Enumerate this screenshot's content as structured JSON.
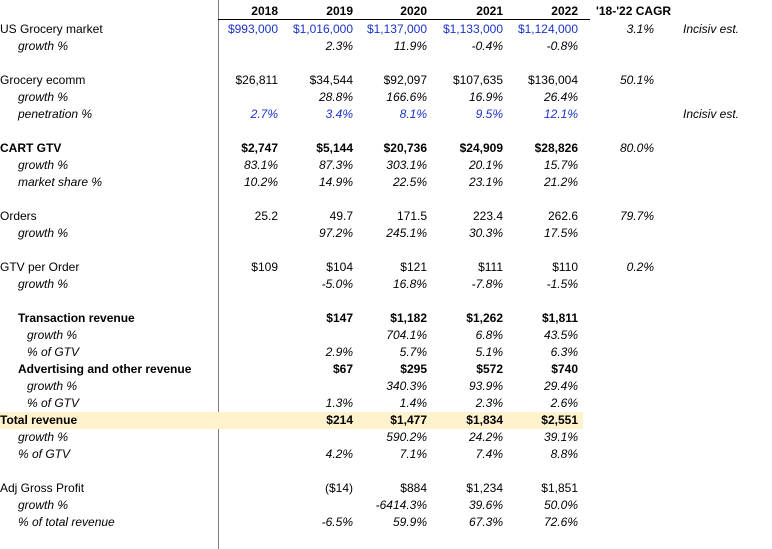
{
  "header": {
    "years": [
      "2018",
      "2019",
      "2020",
      "2021",
      "2022"
    ],
    "cagr": "'18-'22 CAGR"
  },
  "rows": {
    "us_grocery": {
      "label": "US Grocery market",
      "v": [
        "$993,000",
        "$1,016,000",
        "$1,137,000",
        "$1,133,000",
        "$1,124,000"
      ],
      "cagr": "3.1%",
      "note": "Incisiv est."
    },
    "us_growth": {
      "label": "growth %",
      "v": [
        "",
        "2.3%",
        "11.9%",
        "-0.4%",
        "-0.8%"
      ]
    },
    "ecomm": {
      "label": "Grocery ecomm",
      "v": [
        "$26,811",
        "$34,544",
        "$92,097",
        "$107,635",
        "$136,004"
      ],
      "cagr": "50.1%"
    },
    "ecomm_growth": {
      "label": "growth %",
      "v": [
        "",
        "28.8%",
        "166.6%",
        "16.9%",
        "26.4%"
      ]
    },
    "ecomm_pen": {
      "label": "penetration %",
      "v": [
        "2.7%",
        "3.4%",
        "8.1%",
        "9.5%",
        "12.1%"
      ],
      "note": "Incisiv est."
    },
    "cart": {
      "label": "CART GTV",
      "v": [
        "$2,747",
        "$5,144",
        "$20,736",
        "$24,909",
        "$28,826"
      ],
      "cagr": "80.0%"
    },
    "cart_growth": {
      "label": "growth %",
      "v": [
        "83.1%",
        "87.3%",
        "303.1%",
        "20.1%",
        "15.7%"
      ]
    },
    "cart_share": {
      "label": "market share %",
      "v": [
        "10.2%",
        "14.9%",
        "22.5%",
        "23.1%",
        "21.2%"
      ]
    },
    "orders": {
      "label": "Orders",
      "v": [
        "25.2",
        "49.7",
        "171.5",
        "223.4",
        "262.6"
      ],
      "cagr": "79.7%"
    },
    "orders_growth": {
      "label": "growth %",
      "v": [
        "",
        "97.2%",
        "245.1%",
        "30.3%",
        "17.5%"
      ]
    },
    "gtv_order": {
      "label": "GTV per Order",
      "v": [
        "$109",
        "$104",
        "$121",
        "$111",
        "$110"
      ],
      "cagr": "0.2%"
    },
    "gtv_order_growth": {
      "label": "growth %",
      "v": [
        "",
        "-5.0%",
        "16.8%",
        "-7.8%",
        "-1.5%"
      ]
    },
    "trans_rev": {
      "label": "Transaction revenue",
      "v": [
        "",
        "$147",
        "$1,182",
        "$1,262",
        "$1,811"
      ]
    },
    "trans_growth": {
      "label": "growth %",
      "v": [
        "",
        "",
        "704.1%",
        "6.8%",
        "43.5%"
      ]
    },
    "trans_pct": {
      "label": "% of GTV",
      "v": [
        "",
        "2.9%",
        "5.7%",
        "5.1%",
        "6.3%"
      ]
    },
    "adv_rev": {
      "label": "Advertising and other revenue",
      "v": [
        "",
        "$67",
        "$295",
        "$572",
        "$740"
      ]
    },
    "adv_growth": {
      "label": "growth %",
      "v": [
        "",
        "",
        "340.3%",
        "93.9%",
        "29.4%"
      ]
    },
    "adv_pct": {
      "label": "% of GTV",
      "v": [
        "",
        "1.3%",
        "1.4%",
        "2.3%",
        "2.6%"
      ]
    },
    "total_rev": {
      "label": "Total revenue",
      "v": [
        "",
        "$214",
        "$1,477",
        "$1,834",
        "$2,551"
      ]
    },
    "total_growth": {
      "label": "growth %",
      "v": [
        "",
        "",
        "590.2%",
        "24.2%",
        "39.1%"
      ]
    },
    "total_pct": {
      "label": "% of GTV",
      "v": [
        "",
        "4.2%",
        "7.1%",
        "7.4%",
        "8.8%"
      ]
    },
    "gp": {
      "label": "Adj Gross Profit",
      "v": [
        "",
        "($14)",
        "$884",
        "$1,234",
        "$1,851"
      ]
    },
    "gp_growth": {
      "label": "growth %",
      "v": [
        "",
        "",
        "-6414.3%",
        "39.6%",
        "50.0%"
      ]
    },
    "gp_pct": {
      "label": "% of total revenue",
      "v": [
        "",
        "-6.5%",
        "59.9%",
        "67.3%",
        "72.6%"
      ]
    }
  },
  "colors": {
    "input_blue": "#1a33cc",
    "highlight": "#fff2cc"
  }
}
